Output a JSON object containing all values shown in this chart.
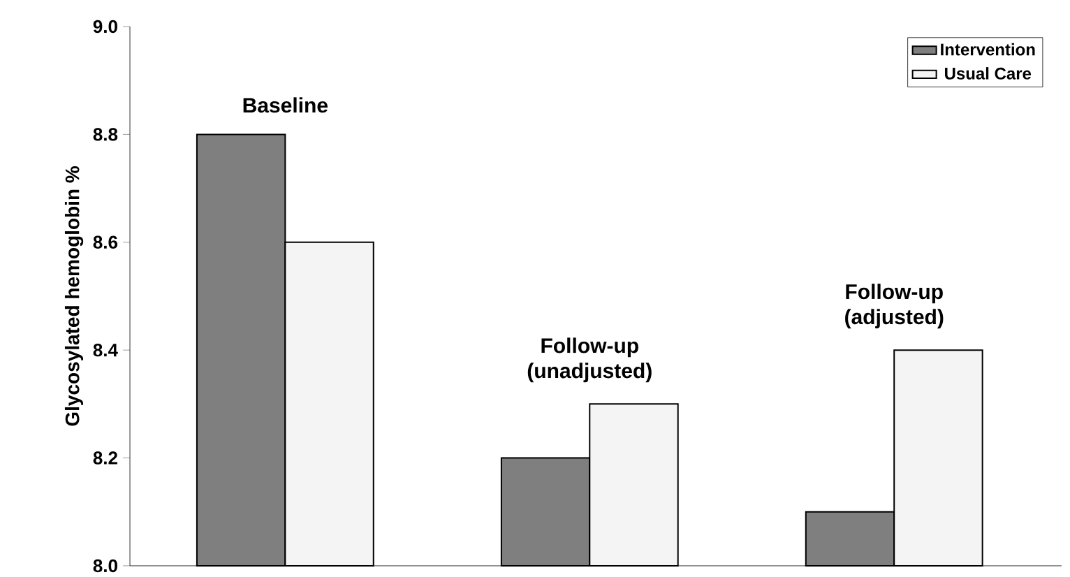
{
  "chart_data": {
    "type": "bar",
    "ylabel": "Glycosylated hemoglobin %",
    "categories": [
      "Baseline",
      "Follow-up (unadjusted)",
      "Follow-up (adjusted)"
    ],
    "series": [
      {
        "name": "Intervention",
        "color": "#7f7f7f",
        "values": [
          8.8,
          8.2,
          8.1
        ]
      },
      {
        "name": "Usual Care",
        "color": "#f4f4f4",
        "values": [
          8.6,
          8.3,
          8.4
        ]
      }
    ],
    "ylim": [
      8.0,
      9.0
    ],
    "yticks": [
      {
        "value": 8.0,
        "label": "8.0"
      },
      8.2,
      8.4,
      8.6,
      8.8,
      {
        "value": 9.0,
        "label": "9.0"
      }
    ],
    "legend": "top right"
  }
}
